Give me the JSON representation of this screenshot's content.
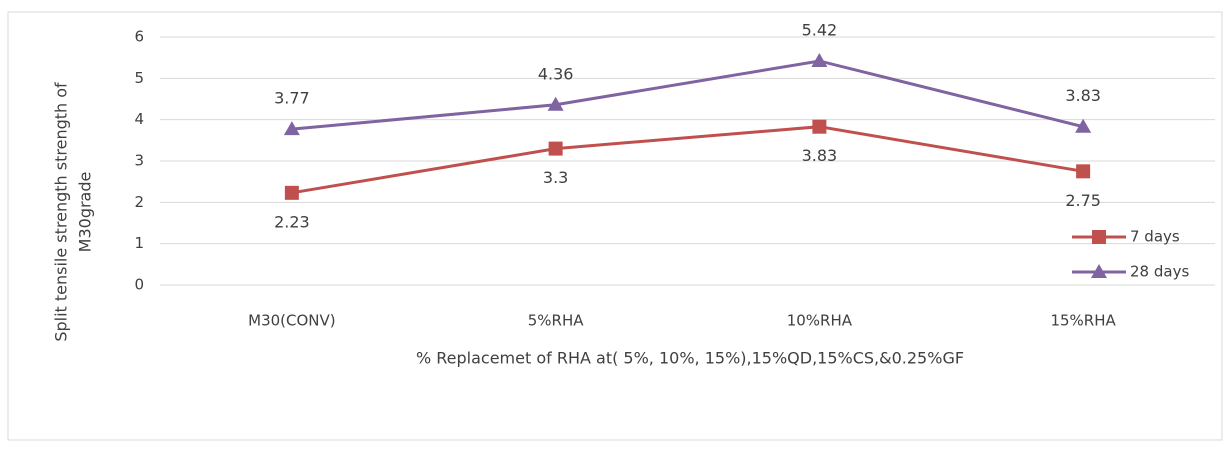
{
  "chart_data": {
    "type": "line",
    "categories": [
      "M30(CONV)",
      "5%RHA",
      "10%RHA",
      "15%RHA"
    ],
    "series": [
      {
        "name": "7 days",
        "color": "#c0504d",
        "marker": "square",
        "values": [
          2.23,
          3.3,
          3.83,
          2.75
        ],
        "label_position": "below"
      },
      {
        "name": "28 days",
        "color": "#8064a2",
        "marker": "triangle",
        "values": [
          3.77,
          4.36,
          5.42,
          3.83
        ],
        "label_position": "above"
      }
    ],
    "ylim": [
      0,
      6
    ],
    "yticks": [
      0,
      1,
      2,
      3,
      4,
      5,
      6
    ],
    "grid": true,
    "ylabel": [
      "Split tensile strength strength of",
      "M30grade"
    ],
    "xlabel": "% Replacemet of RHA at( 5%, 10%, 15%),15%QD,15%CS,&0.25%GF",
    "legend": "right"
  }
}
